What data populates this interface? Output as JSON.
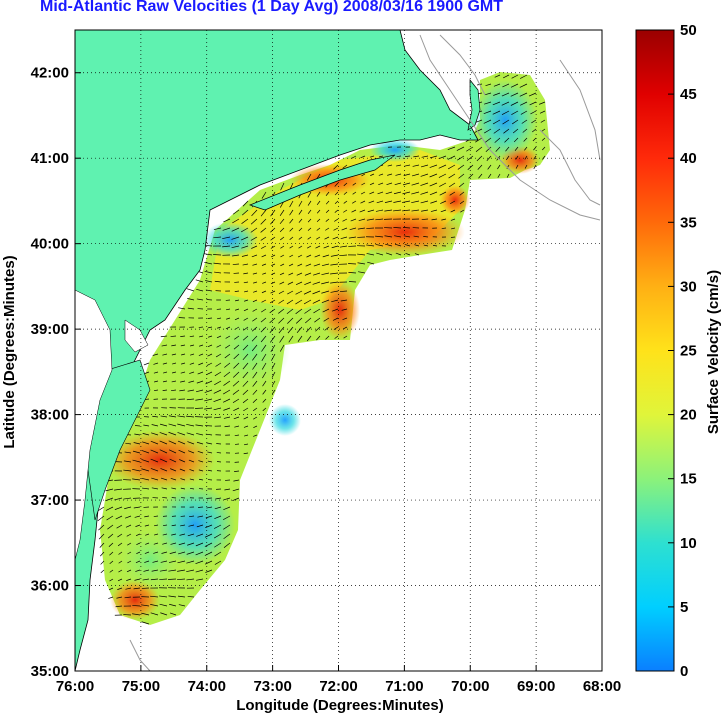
{
  "title": "Mid-Atlantic Raw Velocities (1 Day Avg) 2008/03/16 1900 GMT",
  "map": {
    "xlabel": "Longitude (Degrees:Minutes)",
    "ylabel": "Latitude (Degrees:Minutes)",
    "x_ticks": [
      "76:00",
      "75:00",
      "74:00",
      "73:00",
      "72:00",
      "71:00",
      "70:00",
      "69:00",
      "68:00"
    ],
    "y_ticks": [
      "35:00",
      "36:00",
      "37:00",
      "38:00",
      "39:00",
      "40:00",
      "41:00",
      "42:00"
    ],
    "lon_range": [
      -76,
      -68
    ],
    "lat_range": [
      35,
      42.5
    ],
    "grid": true,
    "land_color": "#5ff2b0",
    "coast_color": "#000000",
    "bathy_color": "#9a9a9a",
    "vector_color": "#000000"
  },
  "colorbar": {
    "label": "Surface Velocity (cm/s)",
    "ticks": [
      "0",
      "5",
      "10",
      "15",
      "20",
      "25",
      "30",
      "35",
      "40",
      "45",
      "50"
    ],
    "range": [
      0,
      50
    ],
    "colors": [
      "#0a7fff",
      "#00cfff",
      "#2ee0d0",
      "#8cf27a",
      "#e0f53a",
      "#ffe21a",
      "#ffb014",
      "#ff6a0a",
      "#ff2a0a",
      "#e00000",
      "#9a0000"
    ]
  }
}
